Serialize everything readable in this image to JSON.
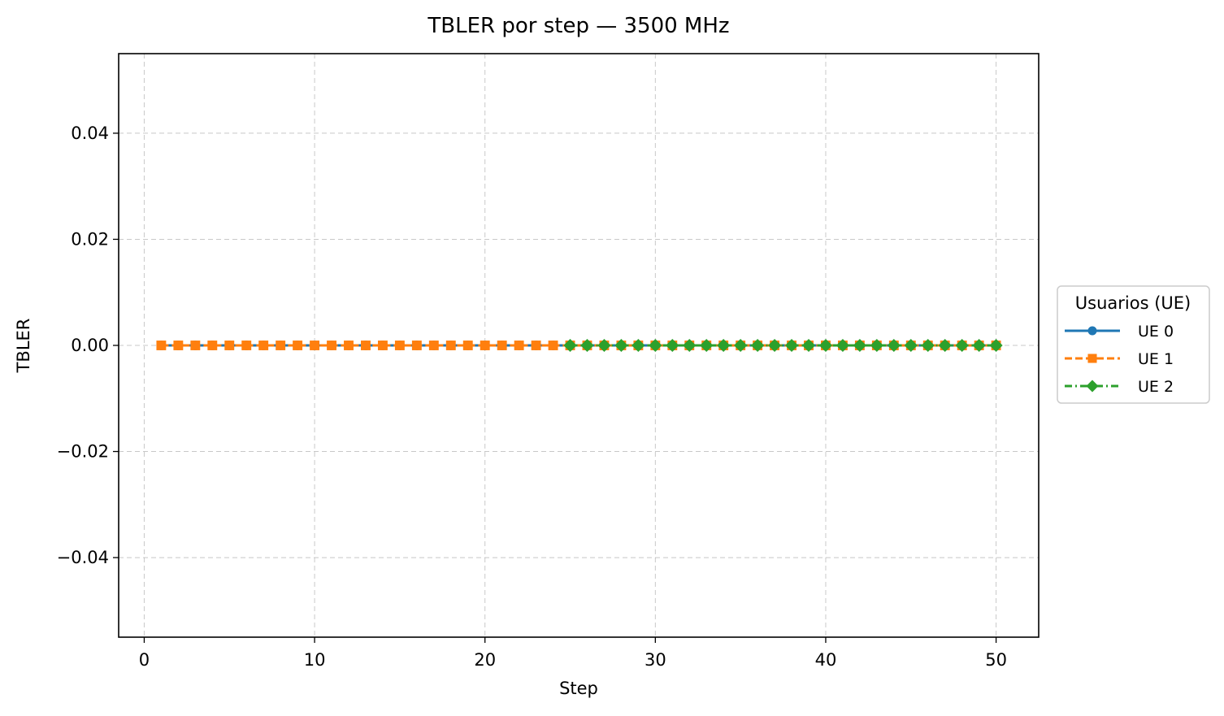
{
  "chart_data": {
    "type": "line",
    "title": "TBLER por step — 3500 MHz",
    "xlabel": "Step",
    "ylabel": "TBLER",
    "xlim": [
      -1.5,
      52.5
    ],
    "ylim": [
      -0.055,
      0.055
    ],
    "x_ticks": [
      0,
      10,
      20,
      30,
      40,
      50
    ],
    "y_ticks": [
      -0.04,
      -0.02,
      0.0,
      0.02,
      0.04
    ],
    "y_tick_labels": [
      "−0.04",
      "−0.02",
      "0.00",
      "0.02",
      "0.04"
    ],
    "grid": true,
    "legend_title": "Usuarios (UE)",
    "legend_placement": "right, outside plot area, vertically centered",
    "series": [
      {
        "name": "UE 0",
        "color": "#1f77b4",
        "marker": "circle",
        "line_style": "solid",
        "x": [
          1,
          2,
          3,
          4,
          5,
          6,
          7,
          8,
          9,
          10,
          11,
          12,
          13,
          14,
          15,
          16,
          17,
          18,
          19,
          20,
          21,
          22,
          23,
          24,
          25,
          26,
          27,
          28,
          29,
          30,
          31,
          32,
          33,
          34,
          35,
          36,
          37,
          38,
          39,
          40,
          41,
          42,
          43,
          44,
          45,
          46,
          47,
          48,
          49,
          50
        ],
        "y": [
          0,
          0,
          0,
          0,
          0,
          0,
          0,
          0,
          0,
          0,
          0,
          0,
          0,
          0,
          0,
          0,
          0,
          0,
          0,
          0,
          0,
          0,
          0,
          0,
          0,
          0,
          0,
          0,
          0,
          0,
          0,
          0,
          0,
          0,
          0,
          0,
          0,
          0,
          0,
          0,
          0,
          0,
          0,
          0,
          0,
          0,
          0,
          0,
          0,
          0
        ]
      },
      {
        "name": "UE 1",
        "color": "#ff7f0e",
        "marker": "square",
        "line_style": "dashed",
        "x": [
          1,
          2,
          3,
          4,
          5,
          6,
          7,
          8,
          9,
          10,
          11,
          12,
          13,
          14,
          15,
          16,
          17,
          18,
          19,
          20,
          21,
          22,
          23,
          24,
          25,
          26,
          27,
          28,
          29,
          30,
          31,
          32,
          33,
          34,
          35,
          36,
          37,
          38,
          39,
          40,
          41,
          42,
          43,
          44,
          45,
          46,
          47,
          48,
          49,
          50
        ],
        "y": [
          0,
          0,
          0,
          0,
          0,
          0,
          0,
          0,
          0,
          0,
          0,
          0,
          0,
          0,
          0,
          0,
          0,
          0,
          0,
          0,
          0,
          0,
          0,
          0,
          0,
          0,
          0,
          0,
          0,
          0,
          0,
          0,
          0,
          0,
          0,
          0,
          0,
          0,
          0,
          0,
          0,
          0,
          0,
          0,
          0,
          0,
          0,
          0,
          0,
          0
        ]
      },
      {
        "name": "UE 2",
        "color": "#2ca02c",
        "marker": "diamond",
        "line_style": "dashdot",
        "x": [
          25,
          26,
          27,
          28,
          29,
          30,
          31,
          32,
          33,
          34,
          35,
          36,
          37,
          38,
          39,
          40,
          41,
          42,
          43,
          44,
          45,
          46,
          47,
          48,
          49,
          50
        ],
        "y": [
          0,
          0,
          0,
          0,
          0,
          0,
          0,
          0,
          0,
          0,
          0,
          0,
          0,
          0,
          0,
          0,
          0,
          0,
          0,
          0,
          0,
          0,
          0,
          0,
          0,
          0
        ]
      }
    ]
  }
}
